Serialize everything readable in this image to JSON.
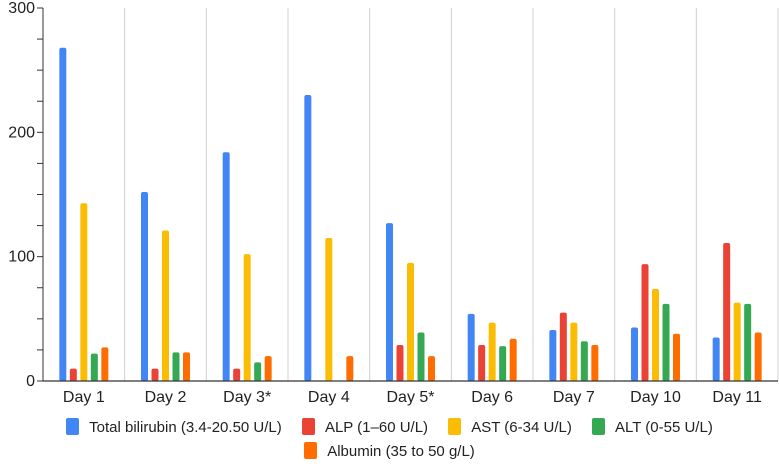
{
  "chart_data": {
    "type": "bar",
    "title": "",
    "xlabel": "",
    "ylabel": "",
    "ylim": [
      0,
      300
    ],
    "yticks": [
      0,
      100,
      200,
      300
    ],
    "grid": "vertical",
    "legend_position": "bottom",
    "categories": [
      "Day 1",
      "Day 2",
      "Day 3*",
      "Day 4",
      "Day 5*",
      "Day 6",
      "Day 7",
      "Day 10",
      "Day 11"
    ],
    "series": [
      {
        "name": "Total bilirubin (3.4-20.50 U/L)",
        "color": "#4285F4",
        "values": [
          268,
          152,
          184,
          230,
          127,
          54,
          41,
          43,
          35
        ]
      },
      {
        "name": "ALP (1–60 U/L)",
        "color": "#EA4335",
        "values": [
          10,
          10,
          10,
          null,
          29,
          29,
          55,
          94,
          111
        ]
      },
      {
        "name": "AST (6-34 U/L)",
        "color": "#FBBC04",
        "values": [
          143,
          121,
          102,
          115,
          95,
          47,
          47,
          74,
          63
        ]
      },
      {
        "name": "ALT (0-55 U/L)",
        "color": "#34A853",
        "values": [
          22,
          23,
          15,
          null,
          39,
          28,
          32,
          62,
          62
        ]
      },
      {
        "name": "Albumin (35 to 50 g/L)",
        "color": "#FF6D01",
        "values": [
          27,
          23,
          20,
          20,
          20,
          34,
          29,
          38,
          39
        ]
      }
    ]
  }
}
